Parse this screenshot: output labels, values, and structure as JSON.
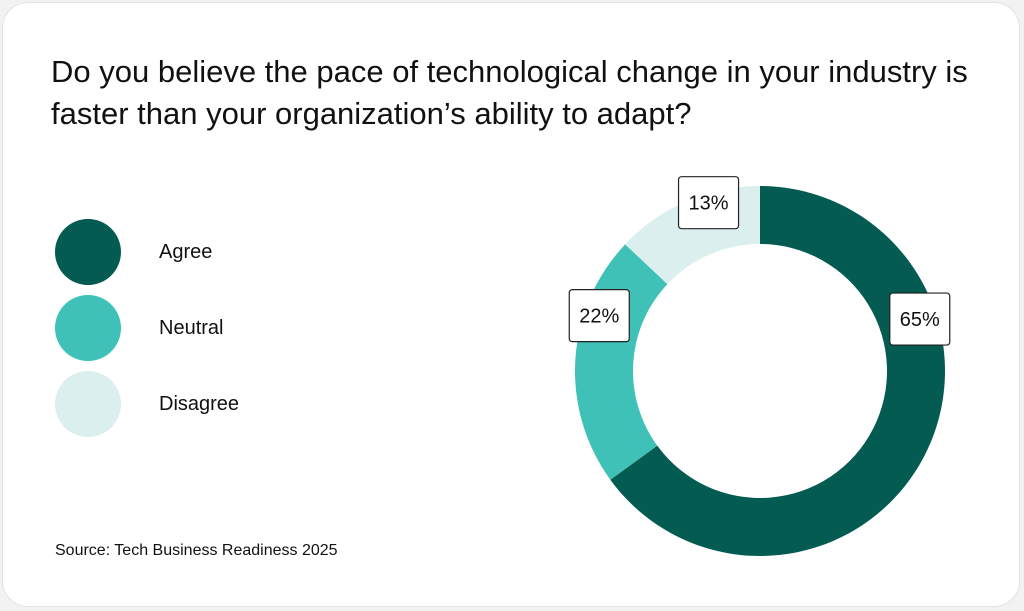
{
  "chart_data": {
    "type": "pie",
    "donut": true,
    "title": "Do you believe the pace of technological change in your industry is faster than your organization’s ability to adapt?",
    "categories": [
      "Agree",
      "Neutral",
      "Disagree"
    ],
    "values": [
      65,
      22,
      13
    ],
    "value_labels": [
      "65%",
      "22%",
      "13%"
    ],
    "colors": [
      "#035b52",
      "#3fc1b7",
      "#daefee"
    ],
    "legend": {
      "placement": "left"
    },
    "source": "Source: Tech Business Readiness 2025"
  }
}
